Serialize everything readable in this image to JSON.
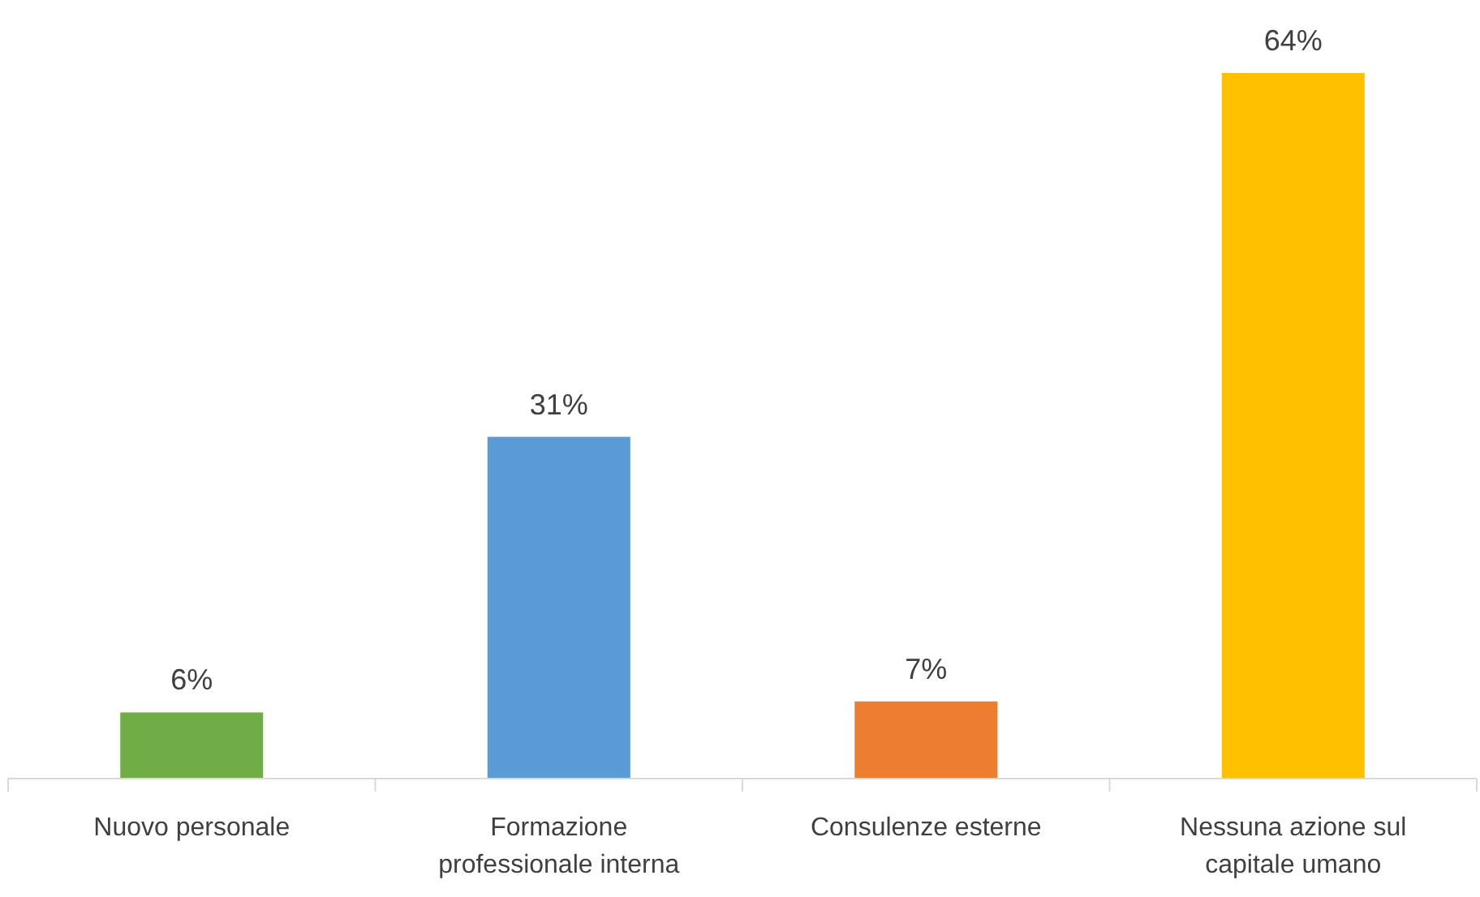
{
  "chart_data": {
    "type": "bar",
    "categories": [
      "Nuovo personale",
      "Formazione professionale interna",
      "Consulenze esterne",
      "Nessuna azione sul capitale umano"
    ],
    "values": [
      6,
      31,
      7,
      64
    ],
    "colors": [
      "#70ad47",
      "#5b9bd5",
      "#ed7d31",
      "#ffc000"
    ],
    "value_labels": [
      "6%",
      "31%",
      "7%",
      "64%"
    ],
    "tick_labels": "x"
  }
}
